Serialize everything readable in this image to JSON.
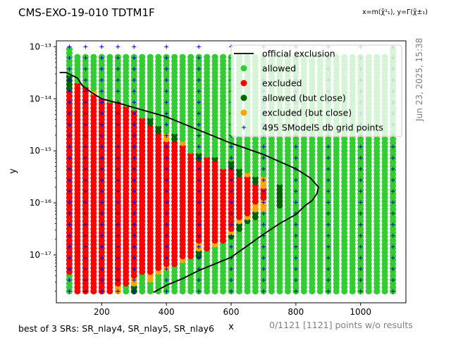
{
  "header": {
    "title": "CMS-EXO-19-010 TDTM1F",
    "axes_note": "x=m(χ̃¹₁), y=Γ(χ̃±₁)",
    "timestamp": "Jun 23, 2025, 15:38"
  },
  "footer": {
    "srs": "best of 3 SRs: SR_nlay4, SR_nlay5, SR_nlay6",
    "points": "0/1121 [1121] points w/o results"
  },
  "chart_data": {
    "type": "scatter",
    "xlabel": "x",
    "ylabel": "y",
    "xlim": [
      60,
      1140
    ],
    "ylim": [
      1.2e-18,
      1.3e-13
    ],
    "yscale": "log",
    "xticks": [
      200,
      400,
      600,
      800,
      1000
    ],
    "xtick_labels": [
      "200",
      "400",
      "600",
      "800",
      "1000"
    ],
    "yticks": [
      1e-17,
      1e-16,
      1e-15,
      1e-14,
      1e-13
    ],
    "ytick_labels": [
      "10⁻¹⁷",
      "10⁻¹⁶",
      "10⁻¹⁵",
      "10⁻¹⁴",
      "10⁻¹³"
    ],
    "grid": false,
    "legend_position": "top-right",
    "colors": {
      "allowed": "#32cd32",
      "excluded": "#ff0000",
      "allowed_close": "#006400",
      "excluded_close": "#ffa500",
      "grid_points": "#0000cd",
      "official": "#000000"
    },
    "legend": [
      {
        "label": "official exclusion",
        "kind": "line"
      },
      {
        "label": "allowed",
        "kind": "allowed"
      },
      {
        "label": "excluded",
        "kind": "excluded"
      },
      {
        "label": "allowed (but close)",
        "kind": "allowed_close"
      },
      {
        "label": "excluded (but close)",
        "kind": "excluded_close"
      },
      {
        "label": "495 SModelS db grid points",
        "kind": "grid_points"
      }
    ],
    "columns": [
      {
        "x": 100,
        "ymin": 2e-18,
        "ymax": 1e-13,
        "segments": [
          [
            "allowed",
            2e-18,
            4e-18
          ],
          [
            "excluded",
            4e-18,
            1.5e-14
          ],
          [
            "allowed_close",
            1.5e-14,
            3e-14
          ],
          [
            "allowed",
            3e-14,
            1e-13
          ]
        ]
      },
      {
        "x": 125,
        "ymin": 2e-18,
        "ymax": 7e-14,
        "segments": [
          [
            "excluded",
            2e-18,
            2e-14
          ],
          [
            "allowed",
            2e-14,
            7e-14
          ]
        ]
      },
      {
        "x": 150,
        "ymin": 2e-18,
        "ymax": 7e-14,
        "segments": [
          [
            "excluded",
            2e-18,
            1.8e-14
          ],
          [
            "allowed",
            1.8e-14,
            7e-14
          ]
        ]
      },
      {
        "x": 175,
        "ymin": 2e-18,
        "ymax": 7e-14,
        "segments": [
          [
            "excluded",
            2e-18,
            1.2e-14
          ],
          [
            "excluded_close",
            1.2e-14,
            1.5e-14
          ],
          [
            "allowed",
            1.5e-14,
            7e-14
          ]
        ]
      },
      {
        "x": 200,
        "ymin": 2e-18,
        "ymax": 7e-14,
        "segments": [
          [
            "excluded",
            2e-18,
            1e-14
          ],
          [
            "allowed",
            1e-14,
            7e-14
          ]
        ]
      },
      {
        "x": 225,
        "ymin": 2e-18,
        "ymax": 7e-14,
        "segments": [
          [
            "excluded",
            2e-18,
            9e-15
          ],
          [
            "allowed",
            9e-15,
            7e-14
          ]
        ]
      },
      {
        "x": 250,
        "ymin": 2e-18,
        "ymax": 7e-14,
        "segments": [
          [
            "excluded_close",
            2e-18,
            2.5e-18
          ],
          [
            "excluded",
            2.5e-18,
            8e-15
          ],
          [
            "allowed",
            8e-15,
            7e-14
          ]
        ]
      },
      {
        "x": 275,
        "ymin": 2e-18,
        "ymax": 7e-14,
        "segments": [
          [
            "allowed",
            2e-18,
            2.5e-18
          ],
          [
            "excluded",
            2.5e-18,
            7e-15
          ],
          [
            "allowed",
            7e-15,
            7e-14
          ]
        ]
      },
      {
        "x": 300,
        "ymin": 2e-18,
        "ymax": 7e-14,
        "segments": [
          [
            "allowed_close",
            2e-18,
            2.5e-18
          ],
          [
            "excluded_close",
            2.5e-18,
            3.5e-18
          ],
          [
            "excluded",
            3.5e-18,
            6e-15
          ],
          [
            "allowed",
            6e-15,
            7e-14
          ]
        ]
      },
      {
        "x": 325,
        "ymin": 2e-18,
        "ymax": 7e-14,
        "segments": [
          [
            "allowed",
            2e-18,
            4e-18
          ],
          [
            "excluded",
            4e-18,
            4.5e-15
          ],
          [
            "allowed",
            4.5e-15,
            7e-14
          ]
        ]
      },
      {
        "x": 350,
        "ymin": 2e-18,
        "ymax": 7e-14,
        "segments": [
          [
            "allowed",
            2e-18,
            3e-18
          ],
          [
            "excluded_close",
            3e-18,
            4e-18
          ],
          [
            "excluded",
            4e-18,
            3e-15
          ],
          [
            "allowed_close",
            3e-15,
            4e-15
          ],
          [
            "allowed",
            4e-15,
            7e-14
          ]
        ]
      },
      {
        "x": 375,
        "ymin": 2e-18,
        "ymax": 7e-14,
        "segments": [
          [
            "allowed",
            2e-18,
            4e-18
          ],
          [
            "excluded_close",
            4e-18,
            5e-18
          ],
          [
            "excluded",
            5e-18,
            2e-15
          ],
          [
            "allowed_close",
            2e-15,
            3e-15
          ],
          [
            "allowed",
            3e-15,
            7e-14
          ]
        ]
      },
      {
        "x": 400,
        "ymin": 2e-18,
        "ymax": 7e-14,
        "segments": [
          [
            "allowed",
            2e-18,
            5e-18
          ],
          [
            "excluded_close",
            5e-18,
            6e-18
          ],
          [
            "excluded",
            6e-18,
            1.5e-15
          ],
          [
            "excluded_close",
            1.5e-15,
            2e-15
          ],
          [
            "allowed",
            2e-15,
            7e-14
          ]
        ]
      },
      {
        "x": 425,
        "ymin": 2e-18,
        "ymax": 7e-14,
        "segments": [
          [
            "allowed",
            2e-18,
            6e-18
          ],
          [
            "excluded",
            6e-18,
            1.5e-15
          ],
          [
            "allowed_close",
            1.5e-15,
            2e-15
          ],
          [
            "allowed",
            2e-15,
            7e-14
          ]
        ]
      },
      {
        "x": 450,
        "ymin": 2e-18,
        "ymax": 7e-14,
        "segments": [
          [
            "allowed",
            2e-18,
            7e-18
          ],
          [
            "excluded_close",
            7e-18,
            9e-18
          ],
          [
            "excluded",
            9e-18,
            1.2e-15
          ],
          [
            "excluded_close",
            1.2e-15,
            1.5e-15
          ],
          [
            "allowed",
            1.5e-15,
            7e-14
          ]
        ]
      },
      {
        "x": 475,
        "ymin": 2e-18,
        "ymax": 7e-14,
        "segments": [
          [
            "allowed",
            2e-18,
            8e-18
          ],
          [
            "excluded",
            8e-18,
            1e-15
          ],
          [
            "allowed",
            1e-15,
            7e-14
          ]
        ]
      },
      {
        "x": 500,
        "ymin": 2e-18,
        "ymax": 7e-14,
        "segments": [
          [
            "allowed",
            2e-18,
            9e-18
          ],
          [
            "allowed_close",
            9e-18,
            1.2e-17
          ],
          [
            "excluded_close",
            1.2e-17,
            1.6e-17
          ],
          [
            "excluded",
            1.6e-17,
            7e-16
          ],
          [
            "allowed_close",
            7e-16,
            9e-16
          ],
          [
            "allowed",
            9e-16,
            7e-14
          ]
        ]
      },
      {
        "x": 525,
        "ymin": 2e-18,
        "ymax": 7e-14,
        "segments": [
          [
            "allowed",
            2e-18,
            1.2e-17
          ],
          [
            "excluded",
            1.2e-17,
            8e-16
          ],
          [
            "allowed",
            8e-16,
            7e-14
          ]
        ]
      },
      {
        "x": 550,
        "ymin": 2e-18,
        "ymax": 7e-14,
        "segments": [
          [
            "allowed",
            2e-18,
            1.4e-17
          ],
          [
            "excluded_close",
            1.4e-17,
            1.8e-17
          ],
          [
            "excluded",
            1.8e-17,
            6e-16
          ],
          [
            "allowed_close",
            6e-16,
            8e-16
          ],
          [
            "allowed",
            8e-16,
            7e-14
          ]
        ]
      },
      {
        "x": 575,
        "ymin": 2e-18,
        "ymax": 7e-14,
        "segments": [
          [
            "allowed",
            2e-18,
            1.8e-17
          ],
          [
            "excluded",
            1.8e-17,
            5e-16
          ],
          [
            "allowed",
            5e-16,
            7e-14
          ]
        ]
      },
      {
        "x": 600,
        "ymin": 2e-18,
        "ymax": 7e-14,
        "segments": [
          [
            "allowed",
            2e-18,
            2e-17
          ],
          [
            "allowed_close",
            2e-17,
            2.5e-17
          ],
          [
            "excluded_close",
            2.5e-17,
            3e-17
          ],
          [
            "excluded",
            3e-17,
            4.5e-16
          ],
          [
            "allowed_close",
            4.5e-16,
            6e-16
          ],
          [
            "allowed",
            6e-16,
            7e-14
          ]
        ]
      },
      {
        "x": 625,
        "ymin": 2e-18,
        "ymax": 7e-14,
        "segments": [
          [
            "allowed",
            2e-18,
            3e-17
          ],
          [
            "allowed_close",
            3e-17,
            4e-17
          ],
          [
            "excluded_close",
            4e-17,
            5e-17
          ],
          [
            "excluded",
            5e-17,
            3e-16
          ],
          [
            "allowed_close",
            3e-16,
            5e-16
          ],
          [
            "allowed",
            5e-16,
            7e-14
          ]
        ]
      },
      {
        "x": 650,
        "ymin": 2e-18,
        "ymax": 7e-14,
        "segments": [
          [
            "allowed",
            2e-18,
            4e-17
          ],
          [
            "allowed_close",
            4e-17,
            5e-17
          ],
          [
            "excluded_close",
            5e-17,
            6e-17
          ],
          [
            "excluded",
            6e-17,
            3e-16
          ],
          [
            "excluded_close",
            3e-16,
            4e-16
          ],
          [
            "allowed",
            4e-16,
            7e-14
          ]
        ]
      },
      {
        "x": 675,
        "ymin": 2e-18,
        "ymax": 7e-14,
        "segments": [
          [
            "allowed",
            2e-18,
            5e-17
          ],
          [
            "allowed_close",
            5e-17,
            7e-17
          ],
          [
            "excluded_close",
            7e-17,
            9e-17
          ],
          [
            "excluded",
            9e-17,
            2.5e-16
          ],
          [
            "allowed_close",
            2.5e-16,
            3.5e-16
          ],
          [
            "allowed",
            3.5e-16,
            7e-14
          ]
        ]
      },
      {
        "x": 700,
        "ymin": 2e-18,
        "ymax": 7e-14,
        "segments": [
          [
            "allowed",
            2e-18,
            7e-17
          ],
          [
            "excluded_close",
            7e-17,
            1.2e-16
          ],
          [
            "excluded",
            1.2e-16,
            2e-16
          ],
          [
            "excluded_close",
            2e-16,
            3e-16
          ],
          [
            "allowed",
            3e-16,
            7e-14
          ]
        ]
      },
      {
        "x": 725,
        "ymin": 2e-18,
        "ymax": 7e-14,
        "segments": [
          [
            "allowed",
            2e-18,
            7e-14
          ]
        ]
      },
      {
        "x": 750,
        "ymin": 2e-18,
        "ymax": 7e-14,
        "segments": [
          [
            "allowed",
            2e-18,
            8e-17
          ],
          [
            "allowed_close",
            8e-17,
            2.5e-16
          ],
          [
            "allowed",
            2.5e-16,
            7e-14
          ]
        ]
      },
      {
        "x": 775,
        "ymin": 2e-18,
        "ymax": 7e-14,
        "segments": [
          [
            "allowed",
            2e-18,
            7e-14
          ]
        ]
      },
      {
        "x": 800,
        "ymin": 2e-18,
        "ymax": 7e-14,
        "segments": [
          [
            "allowed",
            2e-18,
            7e-14
          ]
        ]
      },
      {
        "x": 825,
        "ymin": 2e-18,
        "ymax": 7e-14,
        "segments": [
          [
            "allowed",
            2e-18,
            7e-14
          ]
        ]
      },
      {
        "x": 850,
        "ymin": 2e-18,
        "ymax": 7e-14,
        "segments": [
          [
            "allowed",
            2e-18,
            7e-14
          ]
        ]
      },
      {
        "x": 875,
        "ymin": 2e-18,
        "ymax": 7e-14,
        "segments": [
          [
            "allowed",
            2e-18,
            7e-14
          ]
        ]
      },
      {
        "x": 900,
        "ymin": 2e-18,
        "ymax": 7e-14,
        "segments": [
          [
            "allowed",
            2e-18,
            7e-14
          ]
        ]
      },
      {
        "x": 925,
        "ymin": 2e-18,
        "ymax": 7e-14,
        "segments": [
          [
            "allowed",
            2e-18,
            7e-14
          ]
        ]
      },
      {
        "x": 950,
        "ymin": 2e-18,
        "ymax": 7e-14,
        "segments": [
          [
            "allowed",
            2e-18,
            7e-14
          ]
        ]
      },
      {
        "x": 975,
        "ymin": 2e-18,
        "ymax": 7e-14,
        "segments": [
          [
            "allowed",
            2e-18,
            7e-14
          ]
        ]
      },
      {
        "x": 1000,
        "ymin": 2e-18,
        "ymax": 7e-14,
        "segments": [
          [
            "allowed",
            2e-18,
            7e-14
          ]
        ]
      },
      {
        "x": 1025,
        "ymin": 2e-18,
        "ymax": 7e-14,
        "segments": [
          [
            "allowed",
            2e-18,
            7e-14
          ]
        ]
      },
      {
        "x": 1050,
        "ymin": 2e-18,
        "ymax": 7e-14,
        "segments": [
          [
            "allowed",
            2e-18,
            7e-14
          ]
        ]
      },
      {
        "x": 1075,
        "ymin": 2e-18,
        "ymax": 7e-14,
        "segments": [
          [
            "allowed",
            2e-18,
            7e-14
          ]
        ]
      },
      {
        "x": 1100,
        "ymin": 2e-18,
        "ymax": 1e-13,
        "segments": [
          [
            "allowed",
            2e-18,
            1e-13
          ]
        ]
      }
    ],
    "grid_point_columns": [
      100,
      150,
      200,
      250,
      300,
      400,
      500,
      600,
      700,
      800,
      900,
      1000,
      1100
    ],
    "official_exclusion": [
      [
        70,
        3.2e-14
      ],
      [
        90,
        3.2e-14
      ],
      [
        110,
        2.8e-14
      ],
      [
        125,
        2.5e-14
      ],
      [
        140,
        1.8e-14
      ],
      [
        170,
        1.3e-14
      ],
      [
        200,
        1e-14
      ],
      [
        260,
        8e-15
      ],
      [
        300,
        6.8e-15
      ],
      [
        400,
        4.5e-15
      ],
      [
        500,
        2.5e-15
      ],
      [
        600,
        1.4e-15
      ],
      [
        700,
        8.5e-16
      ],
      [
        800,
        4.5e-16
      ],
      [
        845,
        3e-16
      ],
      [
        870,
        2e-16
      ],
      [
        865,
        1.5e-16
      ],
      [
        850,
        1.1e-16
      ],
      [
        830,
        9e-17
      ],
      [
        800,
        6e-17
      ],
      [
        750,
        4e-17
      ],
      [
        700,
        2.5e-17
      ],
      [
        650,
        1.5e-17
      ],
      [
        600,
        9e-18
      ],
      [
        500,
        5e-18
      ],
      [
        450,
        3.5e-18
      ],
      [
        400,
        2.6e-18
      ],
      [
        360,
        1.9e-18
      ]
    ]
  }
}
